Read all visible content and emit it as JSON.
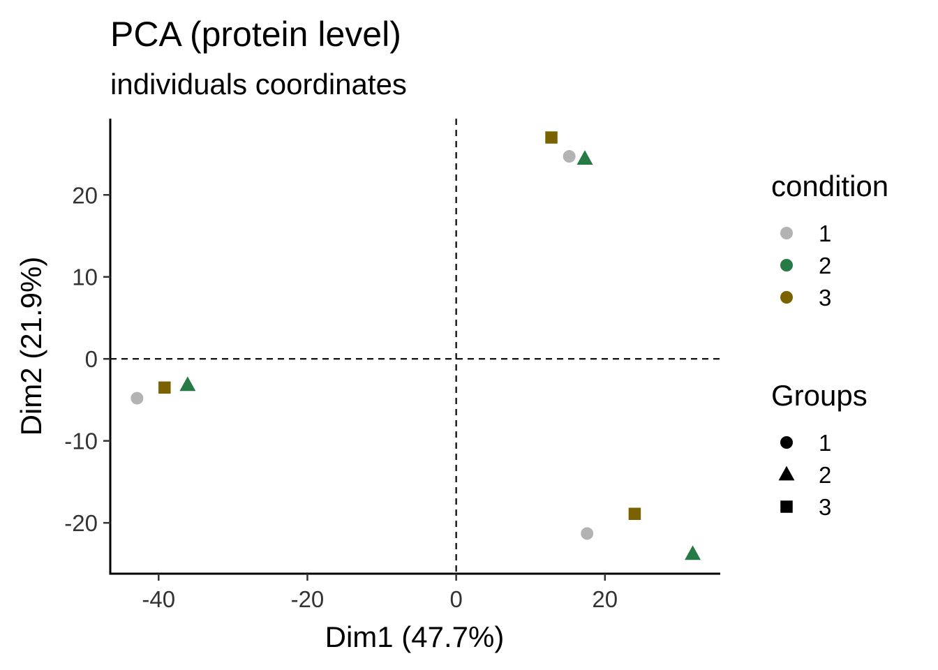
{
  "chart_data": {
    "type": "scatter",
    "title": "PCA (protein level)",
    "subtitle": "individuals coordinates",
    "xlabel": "Dim1 (47.7%)",
    "ylabel": "Dim2 (21.9%)",
    "xlim": [
      -46.5,
      35.5
    ],
    "ylim": [
      -26.2,
      29.3
    ],
    "x_ticks": [
      -40,
      -20,
      0,
      20
    ],
    "y_ticks": [
      -20,
      -10,
      0,
      10,
      20
    ],
    "reference_lines": {
      "x": 0,
      "y": 0,
      "style": "dashed"
    },
    "grid": false,
    "legend_placement": "right",
    "colors": {
      "1": "#b3b3b3",
      "2": "#267a45",
      "3": "#7a6200"
    },
    "points": [
      {
        "x": 15.2,
        "y": 24.7,
        "condition": "1",
        "group": "1"
      },
      {
        "x": 17.3,
        "y": 24.4,
        "condition": "2",
        "group": "2"
      },
      {
        "x": 12.8,
        "y": 27.0,
        "condition": "3",
        "group": "3"
      },
      {
        "x": -42.9,
        "y": -4.8,
        "condition": "1",
        "group": "1"
      },
      {
        "x": -36.1,
        "y": -3.2,
        "condition": "2",
        "group": "2"
      },
      {
        "x": -39.2,
        "y": -3.5,
        "condition": "3",
        "group": "3"
      },
      {
        "x": 17.6,
        "y": -21.3,
        "condition": "1",
        "group": "1"
      },
      {
        "x": 31.8,
        "y": -23.8,
        "condition": "2",
        "group": "2"
      },
      {
        "x": 24.0,
        "y": -18.9,
        "condition": "3",
        "group": "3"
      }
    ],
    "legends": [
      {
        "title": "condition",
        "kind": "color",
        "items": [
          {
            "label": "1",
            "color": "#b3b3b3",
            "shape": "circle"
          },
          {
            "label": "2",
            "color": "#267a45",
            "shape": "circle"
          },
          {
            "label": "3",
            "color": "#7a6200",
            "shape": "circle"
          }
        ]
      },
      {
        "title": "Groups",
        "kind": "shape",
        "items": [
          {
            "label": "1",
            "color": "#000000",
            "shape": "circle"
          },
          {
            "label": "2",
            "color": "#000000",
            "shape": "triangle"
          },
          {
            "label": "3",
            "color": "#000000",
            "shape": "square"
          }
        ]
      }
    ]
  }
}
